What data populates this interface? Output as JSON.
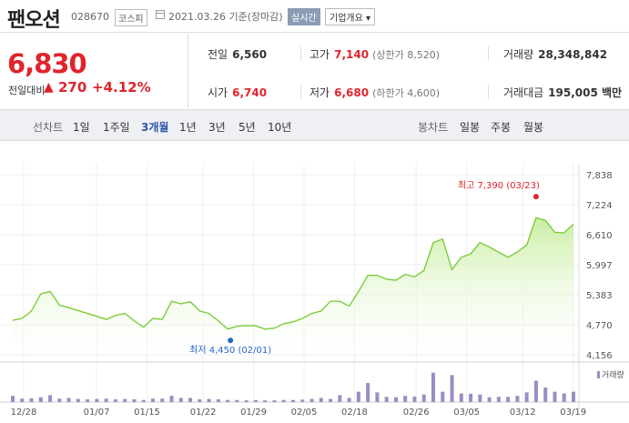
{
  "header": {
    "name": "팬오션",
    "code": "028670",
    "market": "코스피",
    "date": "2021.03.26 기준(장마감)",
    "realtime_label": "실시간",
    "overview_label": "기업개요 ▾"
  },
  "price": {
    "current": "6,830",
    "compare_label": "전일대비",
    "arrow": "▲",
    "change": "270",
    "pct": "+4.12%"
  },
  "stats": {
    "prev_label": "전일",
    "prev": "6,560",
    "high_label": "고가",
    "high": "7,140",
    "upper_limit": "(상한가 8,520)",
    "volume_label": "거래량",
    "volume": "28,348,842",
    "open_label": "시가",
    "open": "6,740",
    "low_label": "저가",
    "low": "6,680",
    "lower_limit": "(하한가 4,600)",
    "amount_label": "거래대금",
    "amount": "195,005 백만"
  },
  "periods": {
    "line_label": "선차트",
    "items": [
      "1일",
      "1주일",
      "3개월",
      "1년",
      "3년",
      "5년",
      "10년"
    ],
    "selected": "3개월",
    "candle_label": "봉차트",
    "candle_items": [
      "일봉",
      "주봉",
      "월봉"
    ]
  },
  "colors": {
    "up": "#e0242c",
    "line": "#7ccd3c",
    "area_top": "#c4ec9a",
    "volume": "#9b8dc4",
    "low_marker": "#2266cc"
  },
  "chart_data": {
    "type": "area",
    "y_ticks": [
      "7,838",
      "7,224",
      "6,610",
      "5,997",
      "5,383",
      "4,770",
      "4,156"
    ],
    "ylim": [
      4156,
      7838
    ],
    "x_ticks": [
      "12/28",
      "01/07",
      "01/15",
      "01/22",
      "01/29",
      "02/05",
      "02/18",
      "02/26",
      "03/05",
      "03/12",
      "03/19"
    ],
    "high_annotation": "최고 7,390 (03/23)",
    "low_annotation": "최저 4,450 (02/01)",
    "volume_legend": "거래량",
    "series": [
      {
        "values": [
          4860,
          4900,
          5050,
          5400,
          5450,
          5170,
          5120,
          5060,
          5000,
          4940,
          4880,
          4960,
          5000,
          4850,
          4720,
          4900,
          4880,
          5250,
          5200,
          5240,
          5050,
          5000,
          4850,
          4680,
          4740,
          4750,
          4750,
          4680,
          4700,
          4790,
          4830,
          4900,
          5000,
          5050,
          5250,
          5250,
          5150,
          5450,
          5780,
          5780,
          5700,
          5680,
          5800,
          5750,
          5880,
          6450,
          6520,
          5900,
          6150,
          6220,
          6450,
          6360,
          6250,
          6150,
          6260,
          6400,
          6960,
          6900,
          6660,
          6650,
          6830
        ]
      }
    ],
    "volumes": [
      0.18,
      0.1,
      0.11,
      0.14,
      0.2,
      0.1,
      0.12,
      0.09,
      0.08,
      0.09,
      0.1,
      0.08,
      0.09,
      0.08,
      0.06,
      0.1,
      0.1,
      0.18,
      0.12,
      0.12,
      0.08,
      0.09,
      0.08,
      0.06,
      0.06,
      0.05,
      0.06,
      0.05,
      0.05,
      0.06,
      0.06,
      0.07,
      0.09,
      0.12,
      0.09,
      0.2,
      0.12,
      0.3,
      0.55,
      0.28,
      0.15,
      0.14,
      0.18,
      0.16,
      0.22,
      0.85,
      0.3,
      0.78,
      0.25,
      0.24,
      0.22,
      0.14,
      0.15,
      0.15,
      0.18,
      0.28,
      0.62,
      0.42,
      0.3,
      0.25,
      0.3
    ]
  }
}
